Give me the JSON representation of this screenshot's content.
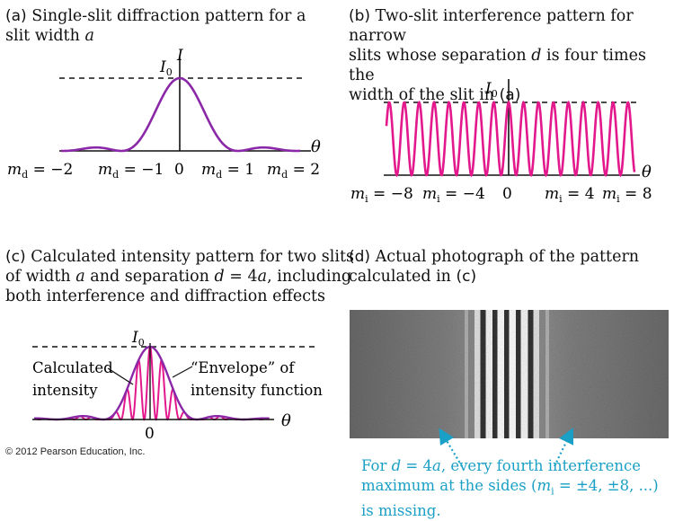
{
  "panel_a": {
    "caption_tag": "(a)",
    "caption_line1_rest": "Single-slit diffraction pattern for a",
    "caption_line2": "slit width",
    "caption_var": "a",
    "peak_label": "I",
    "peak_sub": "0",
    "axis_y_label": "I",
    "axis_x_label": "θ",
    "tick_labels": [
      {
        "var": "m",
        "sub": "d",
        "val": " = −2"
      },
      {
        "var": "m",
        "sub": "d",
        "val": " = −1"
      },
      {
        "var": "",
        "sub": "",
        "val": "0"
      },
      {
        "var": "m",
        "sub": "d",
        "val": " = 1"
      },
      {
        "var": "m",
        "sub": "d",
        "val": " = 2"
      }
    ]
  },
  "panel_b": {
    "caption_tag": "(b)",
    "caption_line1_rest": "Two-slit interference pattern for narrow",
    "caption_line2_a": "slits whose separation",
    "caption_var": "d",
    "caption_line2_b": "is four times the",
    "caption_line3": "width of the slit in",
    "caption_ref": "(a)",
    "peak_label": "I",
    "peak_sub": "0",
    "axis_x_label": "θ",
    "tick_labels": [
      {
        "var": "m",
        "sub": "i",
        "val": " = −8"
      },
      {
        "var": "m",
        "sub": "i",
        "val": " = −4"
      },
      {
        "var": "",
        "sub": "",
        "val": "0"
      },
      {
        "var": "m",
        "sub": "i",
        "val": " = 4"
      },
      {
        "var": "m",
        "sub": "i",
        "val": " = 8"
      }
    ]
  },
  "panel_c": {
    "caption_tag": "(c)",
    "caption_line1_rest": "Calculated intensity pattern for two slits",
    "caption_line2_a": "of width",
    "caption_var_a": "a",
    "caption_line2_b": "and separation",
    "caption_var_d": "d",
    "caption_eq": " = 4",
    "caption_line2_c": ", including",
    "caption_line3": "both interference and diffraction effects",
    "peak_label": "I",
    "peak_sub": "0",
    "label_calc_1": "Calculated",
    "label_calc_2": "intensity",
    "label_env_1": "“Envelope” of",
    "label_env_2": "intensity function",
    "axis_x_label": "θ",
    "tick_zero": "0"
  },
  "panel_d": {
    "caption_tag": "(d)",
    "caption_line1_rest": "Actual photograph of the pattern",
    "caption_line2": "calculated in",
    "caption_ref": "(c)",
    "note_line1_a": "For",
    "note_var_d": "d",
    "note_eq": " = 4",
    "note_var_a": "a",
    "note_line1_b": ", every fourth interference",
    "note_line2_a": "maximum at the sides (",
    "note_var_m": "m",
    "note_sub": "i",
    "note_line2_b": " = ±4, ±8, ...)",
    "note_line3": "is missing."
  },
  "copyright": "© 2012 Pearson Education, Inc.",
  "colors": {
    "single_slit_curve": "#8b28a8",
    "interference_curve": "#e2188c",
    "annotation": "#1a9fc6",
    "axis": "#111111"
  }
}
